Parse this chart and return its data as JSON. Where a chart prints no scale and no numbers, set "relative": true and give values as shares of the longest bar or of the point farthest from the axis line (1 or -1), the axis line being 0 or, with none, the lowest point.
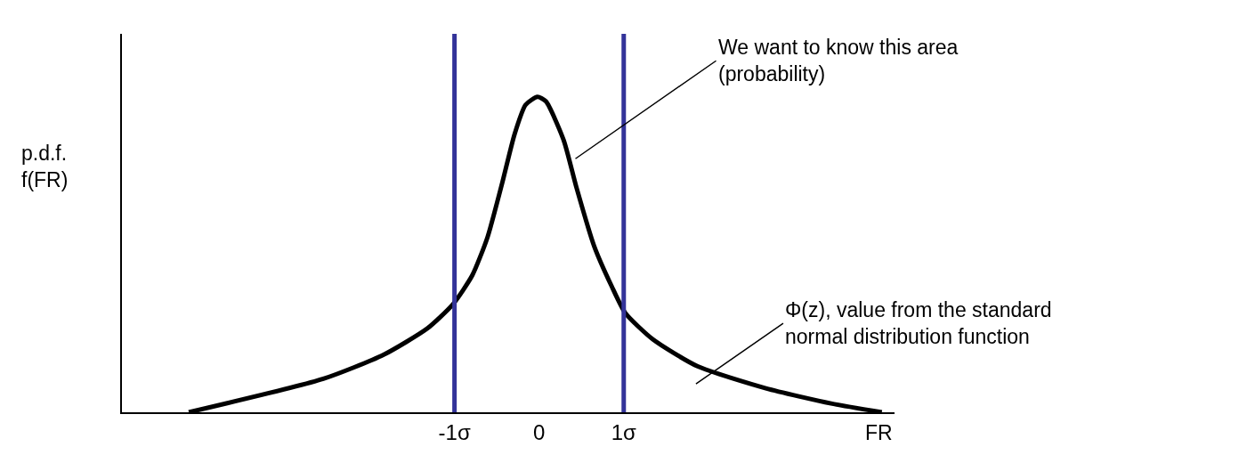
{
  "chart_data": {
    "type": "line",
    "relative": true,
    "x": [
      -4.14,
      -2.55,
      -1.84,
      -1.32,
      -1.02,
      -0.79,
      -0.61,
      -0.44,
      -0.29,
      -0.16,
      -0.02,
      0.08,
      0.29,
      0.44,
      0.65,
      0.86,
      1.02,
      1.35,
      1.87,
      2.68,
      3.45,
      4.05
    ],
    "series": [
      {
        "color": "#000000",
        "values": [
          0,
          0.106,
          0.182,
          0.266,
          0.342,
          0.434,
          0.555,
          0.723,
          0.882,
          0.975,
          1.0,
          0.986,
          0.863,
          0.714,
          0.527,
          0.398,
          0.314,
          0.23,
          0.146,
          0.076,
          0.028,
          0
        ]
      }
    ],
    "xlim": [
      -4.93,
      4.2
    ],
    "xticks": [
      {
        "value": -1,
        "label": "-1σ"
      },
      0,
      {
        "value": 1,
        "label": "1σ"
      }
    ],
    "tick_labels": "x",
    "xlabel": "FR",
    "ylabel": "p.d.f.\nf(FR)",
    "ref_lines": [
      {
        "axis": "x",
        "value": -1,
        "color": "#333399"
      },
      {
        "axis": "x",
        "value": 1,
        "color": "#333399"
      }
    ],
    "annotations": [
      "We want to know this area\n(probability)",
      "Φ(z), value from the standard\nnormal distribution function"
    ],
    "marker": "none",
    "line_style": "solid"
  }
}
